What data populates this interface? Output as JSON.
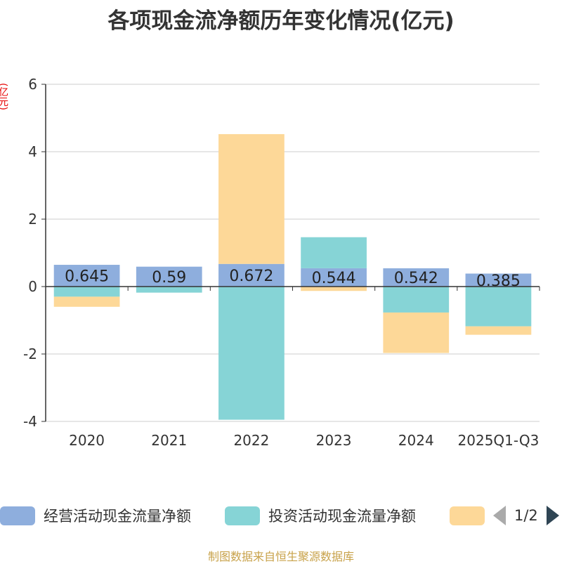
{
  "chart_data": {
    "type": "bar",
    "stacked": true,
    "title": "各项现金流净额历年变化情况(亿元)",
    "ylabel": "(亿元)",
    "ylim": [
      -4,
      6
    ],
    "yticks": [
      -4,
      -2,
      0,
      2,
      4,
      6
    ],
    "grid": true,
    "categories": [
      "2020",
      "2021",
      "2022",
      "2023",
      "2024",
      "2025Q1-Q3"
    ],
    "series": [
      {
        "name": "经营活动现金流量净额",
        "color": "#8eaedd",
        "values": [
          0.645,
          0.59,
          0.672,
          0.544,
          0.542,
          0.385
        ],
        "labels": [
          "0.645",
          "0.59",
          "0.672",
          "0.544",
          "0.542",
          "0.385"
        ]
      },
      {
        "name": "投资活动现金流量净额",
        "color": "#86d4d6",
        "values": [
          -0.3,
          -0.18,
          -3.95,
          0.92,
          -0.77,
          -1.18
        ]
      },
      {
        "name": "",
        "color": "#fdd898",
        "values": [
          -0.3,
          0.0,
          3.85,
          -0.13,
          -1.2,
          -0.25
        ]
      }
    ],
    "legend_position": "bottom"
  },
  "legend": {
    "items": [
      {
        "label": "经营活动现金流量净额",
        "color": "#8eaedd"
      },
      {
        "label": "投资活动现金流量净额",
        "color": "#86d4d6"
      },
      {
        "label": "",
        "color": "#fdd898"
      }
    ],
    "page": "1/2"
  },
  "source": "制图数据来自恒生聚源数据库"
}
